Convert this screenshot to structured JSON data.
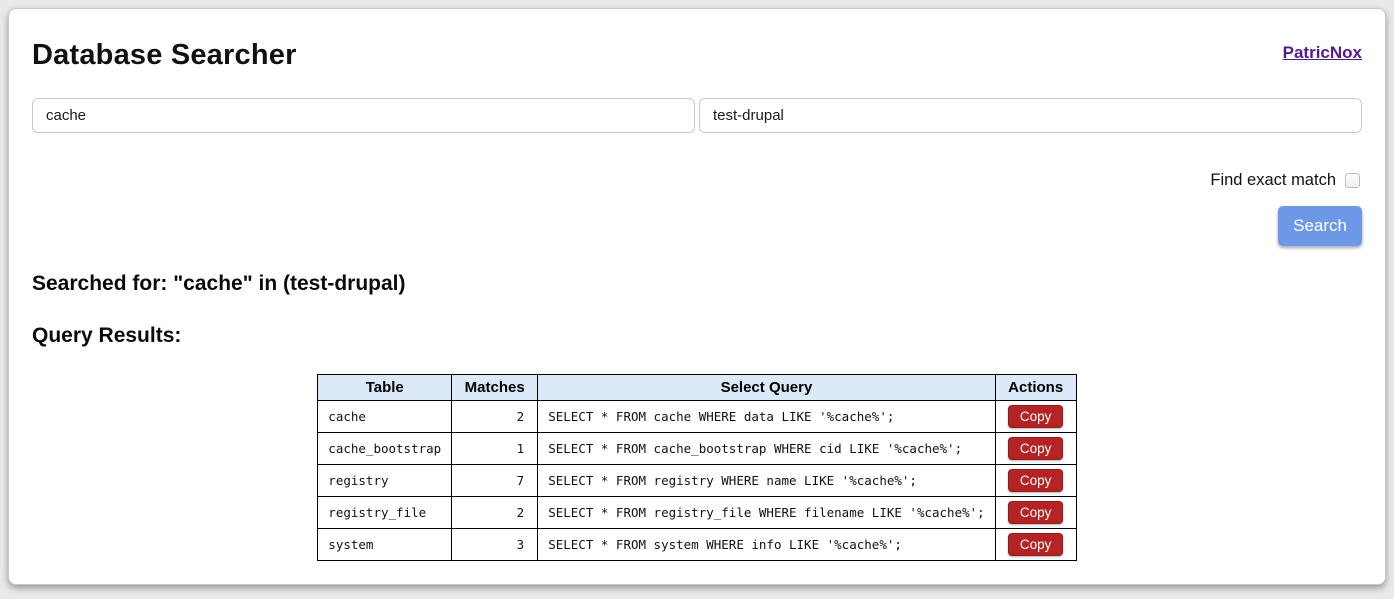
{
  "page": {
    "title": "Database Searcher",
    "author_link": "PatricNox"
  },
  "search": {
    "term_value": "cache",
    "database_value": "test-drupal",
    "exact_match_label": "Find exact match",
    "search_button_label": "Search"
  },
  "results": {
    "searched_for_heading": "Searched for: \"cache\" in (test-drupal)",
    "query_results_heading": "Query Results:",
    "table": {
      "headers": [
        "Table",
        "Matches",
        "Select Query",
        "Actions"
      ],
      "copy_button_label": "Copy",
      "rows": [
        {
          "table": "cache",
          "matches": "2",
          "query": "SELECT * FROM cache WHERE data LIKE '%cache%';"
        },
        {
          "table": "cache_bootstrap",
          "matches": "1",
          "query": "SELECT * FROM cache_bootstrap WHERE cid LIKE '%cache%';"
        },
        {
          "table": "registry",
          "matches": "7",
          "query": "SELECT * FROM registry WHERE name LIKE '%cache%';"
        },
        {
          "table": "registry_file",
          "matches": "2",
          "query": "SELECT * FROM registry_file WHERE filename LIKE '%cache%';"
        },
        {
          "table": "system",
          "matches": "3",
          "query": "SELECT * FROM system WHERE info LIKE '%cache%';"
        }
      ]
    }
  },
  "colors": {
    "accent_search_button": "#6d98e8",
    "copy_button": "#b52424",
    "table_header_bg": "#dbe9f8",
    "link_purple": "#551a8b"
  }
}
